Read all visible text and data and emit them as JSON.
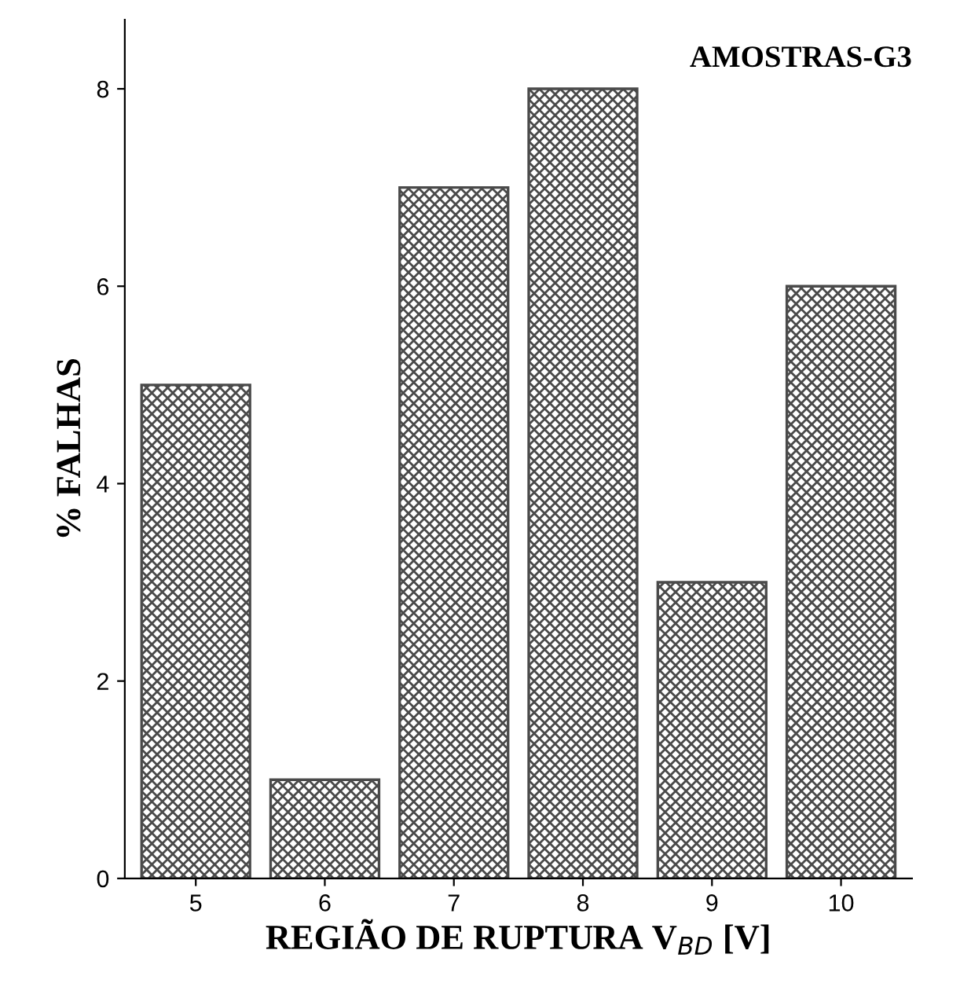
{
  "chart_data": {
    "type": "bar",
    "title": "AMOSTRAS-G3",
    "xlabel": "REGIÃO DE RUPTURA V$_{BD}$ [V]",
    "ylabel": "% FALHAS",
    "categories": [
      "5",
      "6",
      "7",
      "8",
      "9",
      "10"
    ],
    "values": [
      5,
      1,
      7,
      8,
      3,
      6
    ],
    "color": "#4a4a4a",
    "ylim": [
      0,
      8.7
    ],
    "yticks": [
      0,
      2,
      4,
      6,
      8
    ],
    "grid": false,
    "legend": false
  }
}
